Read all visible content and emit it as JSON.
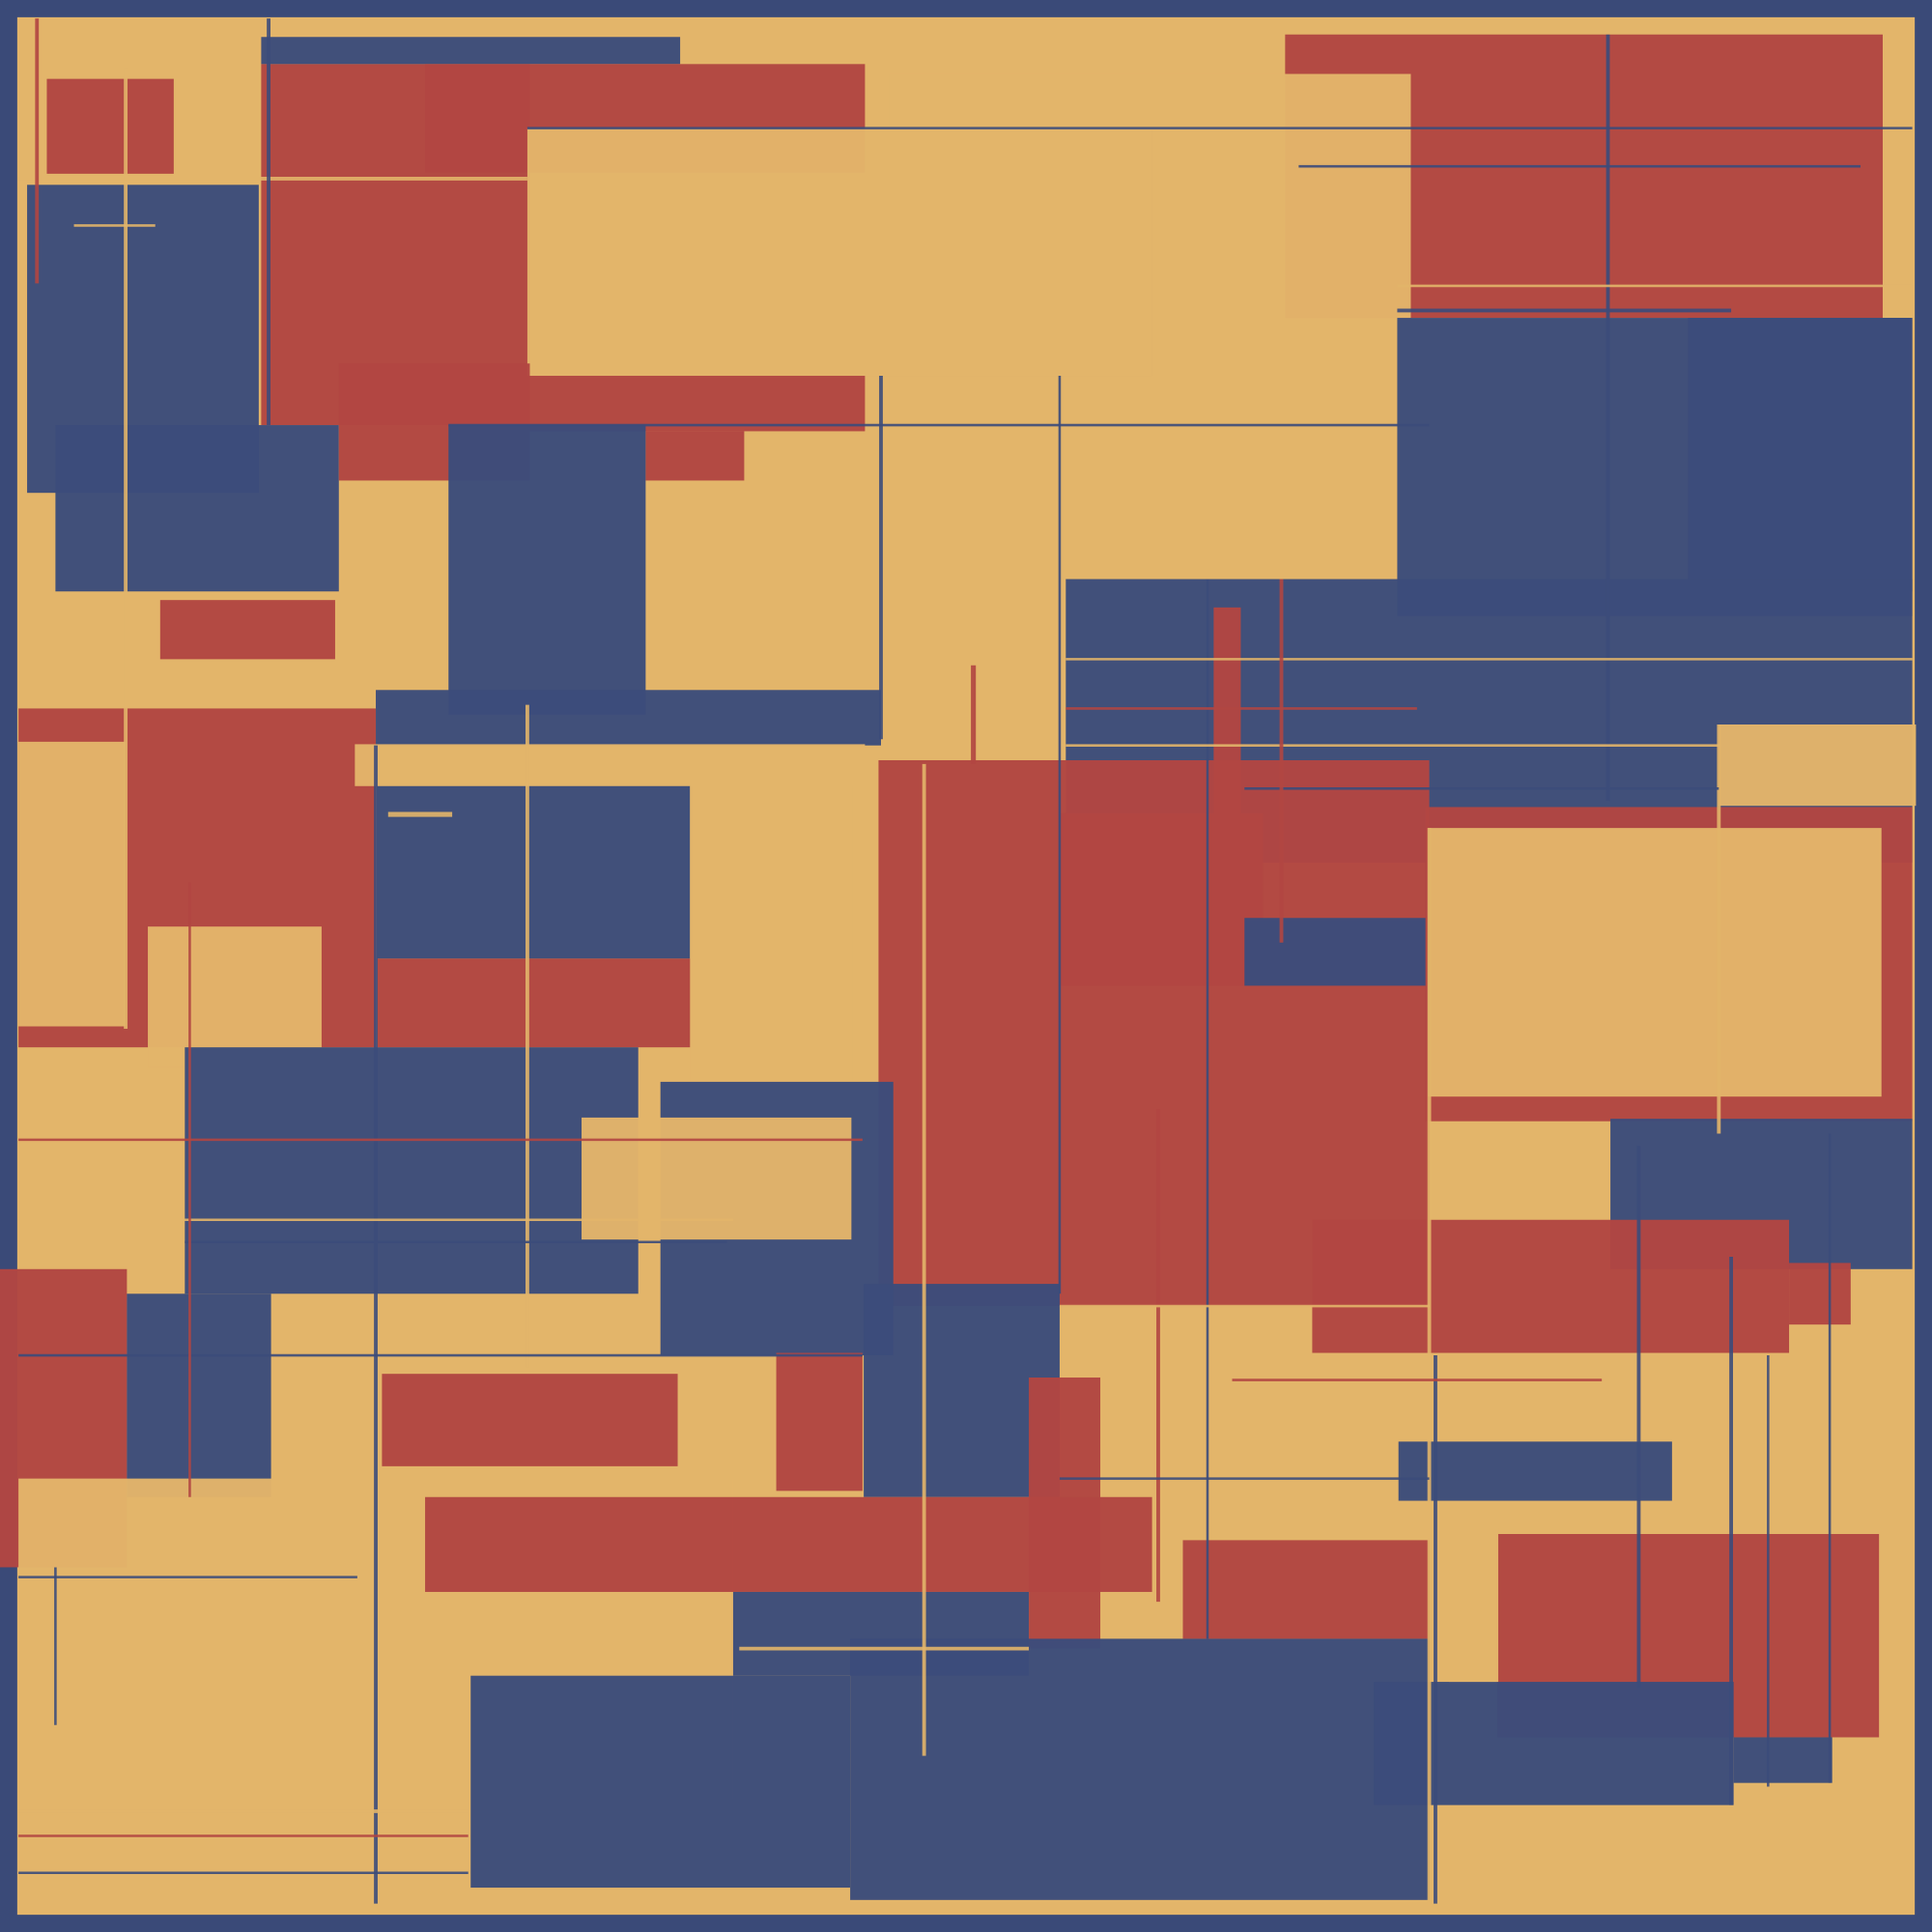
{
  "artwork": {
    "style": "abstract geometric composition of overlapping rectangles and thin lines",
    "palette": {
      "navy": "#3c4c7b",
      "red": "#b24642",
      "tan": "#e3b56a",
      "frame": "#3a4a78",
      "line_light": "#c9a062"
    }
  }
}
